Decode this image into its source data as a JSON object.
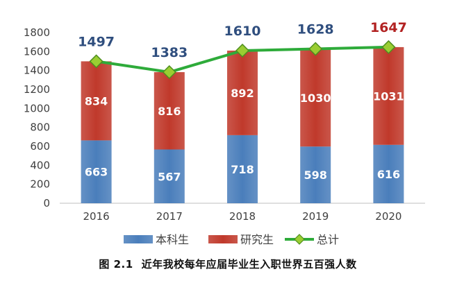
{
  "chart_data": {
    "type": "bar",
    "stacked": true,
    "categories": [
      "2016",
      "2017",
      "2018",
      "2019",
      "2020"
    ],
    "series": [
      {
        "name": "本科生",
        "kind": "bar",
        "color": "#4a7ebb",
        "values": [
          663,
          567,
          718,
          598,
          616
        ]
      },
      {
        "name": "研究生",
        "kind": "bar",
        "color": "#c0392b",
        "values": [
          834,
          816,
          892,
          1030,
          1031
        ]
      },
      {
        "name": "总计",
        "kind": "line",
        "color": "#2eab3a",
        "marker_color": "#9acd32",
        "values": [
          1497,
          1383,
          1610,
          1628,
          1647
        ]
      }
    ],
    "total_label_colors": [
      "#2f4e7e",
      "#2f4e7e",
      "#2f4e7e",
      "#2f4e7e",
      "#b22222"
    ],
    "ylim": [
      0,
      1800
    ],
    "yticks": [
      0,
      200,
      400,
      600,
      800,
      1000,
      1200,
      1400,
      1600,
      1800
    ],
    "grid": false,
    "legend_position": "bottom"
  },
  "caption": {
    "number": "图 2.1",
    "text": "近年我校每年应届毕业生入职世界五百强人数"
  }
}
